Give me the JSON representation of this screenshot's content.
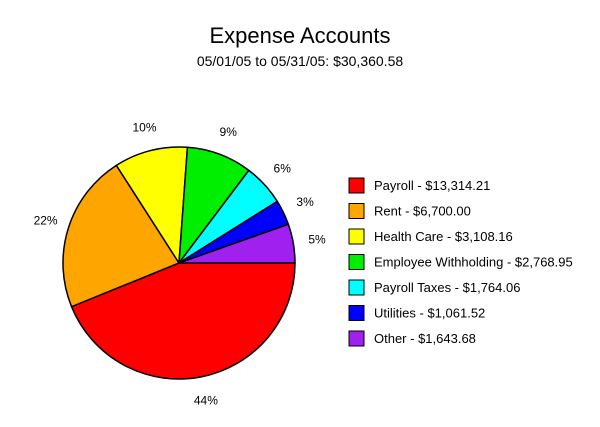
{
  "chart_data": {
    "type": "pie",
    "title": "Expense Accounts",
    "subtitle": "05/01/05 to 05/31/05: $30,360.58",
    "legend_position": "right",
    "slices": [
      {
        "label": "Payroll - $13,314.21",
        "value": 13314.21,
        "percent_label": "44%",
        "color": "#ff0000"
      },
      {
        "label": "Rent - $6,700.00",
        "value": 6700.0,
        "percent_label": "22%",
        "color": "#ffa500"
      },
      {
        "label": "Health Care - $3,108.16",
        "value": 3108.16,
        "percent_label": "10%",
        "color": "#ffff00"
      },
      {
        "label": "Employee Withholding - $2,768.95",
        "value": 2768.95,
        "percent_label": "9%",
        "color": "#00ee00"
      },
      {
        "label": "Payroll Taxes - $1,764.06",
        "value": 1764.06,
        "percent_label": "6%",
        "color": "#00ffff"
      },
      {
        "label": "Utilities - $1,061.52",
        "value": 1061.52,
        "percent_label": "3%",
        "color": "#0000ff"
      },
      {
        "label": "Other - $1,643.68",
        "value": 1643.68,
        "percent_label": "5%",
        "color": "#a020f0"
      }
    ]
  }
}
